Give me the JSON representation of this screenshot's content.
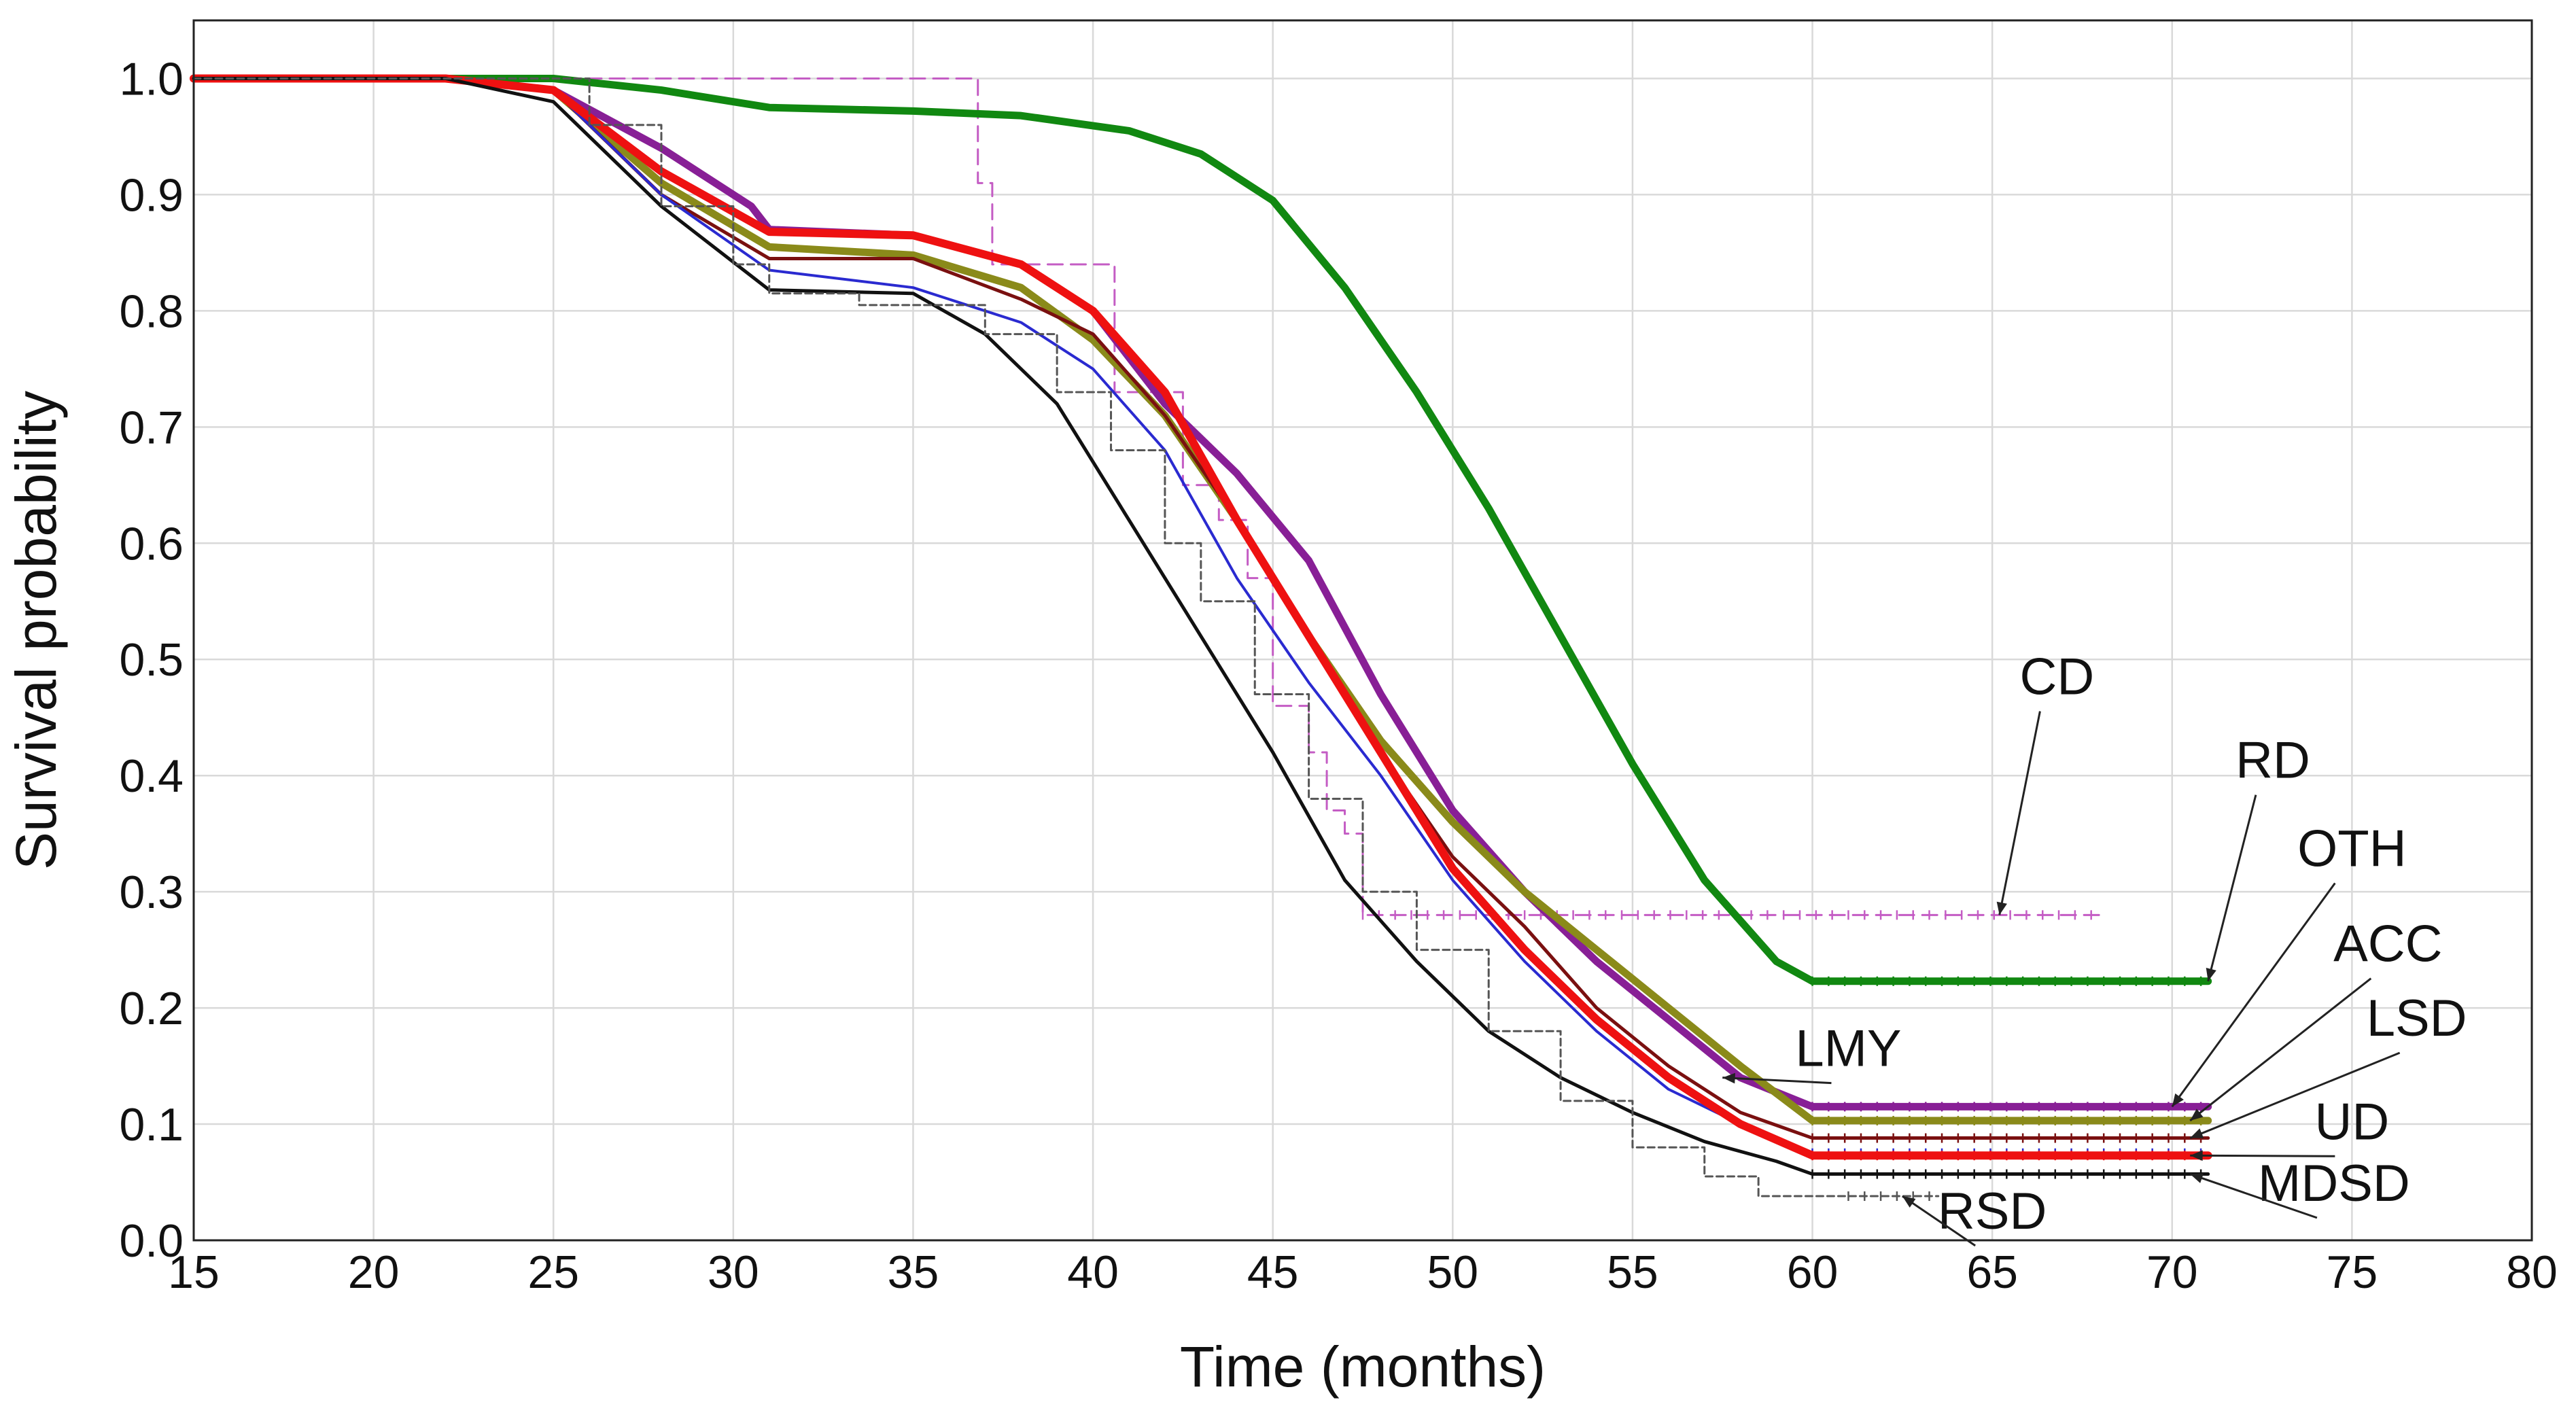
{
  "chart_data": {
    "type": "line",
    "title": "",
    "xlabel": "Time (months)",
    "ylabel": "Survival probability",
    "xlim": [
      15,
      80
    ],
    "ylim": [
      0.0,
      1.05
    ],
    "xticks": [
      15,
      20,
      25,
      30,
      35,
      40,
      45,
      50,
      55,
      60,
      65,
      70,
      75,
      80
    ],
    "yticks": [
      0.0,
      0.1,
      0.2,
      0.3,
      0.4,
      0.5,
      0.6,
      0.7,
      0.8,
      0.9,
      1.0
    ],
    "ytick_labels": [
      "0.0",
      "0.1",
      "0.2",
      "0.3",
      "0.4",
      "0.5",
      "0.6",
      "0.7",
      "0.8",
      "0.9",
      "1.0"
    ],
    "grid": true,
    "series": [
      {
        "name": "CD",
        "color": "#c45cc4",
        "dash": "22 12",
        "width": 3,
        "step": true,
        "x": [
          15,
          36.3,
          36.8,
          37.2,
          40.2,
          40.6,
          42.5,
          43.5,
          44.3,
          45.0,
          46.0,
          46.5,
          47.0,
          47.5,
          68.0
        ],
        "y": [
          1.0,
          1.0,
          0.91,
          0.84,
          0.84,
          0.73,
          0.65,
          0.62,
          0.57,
          0.46,
          0.42,
          0.37,
          0.35,
          0.28,
          0.28
        ]
      },
      {
        "name": "RD",
        "color": "#118811",
        "dash": "",
        "width": 11,
        "step": false,
        "x": [
          15,
          25,
          28,
          31,
          35,
          38,
          41,
          43,
          45,
          47,
          49,
          51,
          53,
          55,
          57,
          59,
          60,
          71
        ],
        "y": [
          1.0,
          1.0,
          0.99,
          0.975,
          0.972,
          0.968,
          0.955,
          0.935,
          0.895,
          0.82,
          0.73,
          0.63,
          0.52,
          0.41,
          0.31,
          0.24,
          0.223,
          0.223
        ]
      },
      {
        "name": "OTH",
        "color": "#881f96",
        "dash": "",
        "width": 11,
        "step": false,
        "x": [
          15,
          22,
          25,
          28,
          30.5,
          31,
          35,
          38,
          40,
          42,
          44,
          46,
          48,
          50,
          52,
          54,
          56,
          58,
          60,
          71
        ],
        "y": [
          1.0,
          1.0,
          0.99,
          0.94,
          0.89,
          0.87,
          0.865,
          0.84,
          0.8,
          0.72,
          0.66,
          0.585,
          0.47,
          0.37,
          0.3,
          0.24,
          0.19,
          0.14,
          0.115,
          0.115
        ]
      },
      {
        "name": "ACC",
        "color": "#8a8a1a",
        "dash": "",
        "width": 11,
        "step": false,
        "x": [
          15,
          22,
          25,
          28,
          31,
          35,
          38,
          40,
          42,
          44,
          46,
          48,
          50,
          52,
          54,
          56,
          58,
          60,
          71
        ],
        "y": [
          1.0,
          1.0,
          0.99,
          0.91,
          0.855,
          0.848,
          0.82,
          0.775,
          0.71,
          0.62,
          0.52,
          0.43,
          0.36,
          0.3,
          0.25,
          0.2,
          0.15,
          0.103,
          0.103
        ]
      },
      {
        "name": "LSD",
        "color": "#7a1010",
        "dash": "",
        "width": 5,
        "step": false,
        "x": [
          15,
          22,
          25,
          28,
          31,
          35,
          38,
          40,
          42,
          44,
          46,
          48,
          50,
          52,
          54,
          56,
          58,
          60,
          71
        ],
        "y": [
          1.0,
          1.0,
          0.99,
          0.9,
          0.845,
          0.845,
          0.81,
          0.78,
          0.71,
          0.62,
          0.52,
          0.42,
          0.33,
          0.27,
          0.2,
          0.15,
          0.11,
          0.088,
          0.088
        ]
      },
      {
        "name": "LMY",
        "color": "#2a2ad0",
        "dash": "",
        "width": 4,
        "step": false,
        "x": [
          15,
          22,
          25,
          28,
          31,
          35,
          38,
          40,
          42,
          44,
          46,
          48,
          50,
          52,
          54,
          56,
          58,
          60,
          71
        ],
        "y": [
          1.0,
          1.0,
          0.99,
          0.9,
          0.835,
          0.82,
          0.79,
          0.75,
          0.68,
          0.57,
          0.48,
          0.4,
          0.31,
          0.24,
          0.18,
          0.13,
          0.1,
          0.075,
          0.075
        ]
      },
      {
        "name": "UD",
        "color": "#ee1111",
        "dash": "",
        "width": 12,
        "step": false,
        "x": [
          15,
          22,
          25,
          28,
          31,
          35,
          38,
          40,
          42,
          44,
          46,
          48,
          50,
          52,
          54,
          56,
          58,
          60,
          71
        ],
        "y": [
          1.0,
          1.0,
          0.99,
          0.92,
          0.868,
          0.865,
          0.84,
          0.8,
          0.73,
          0.62,
          0.52,
          0.42,
          0.32,
          0.25,
          0.19,
          0.14,
          0.1,
          0.073,
          0.073
        ]
      },
      {
        "name": "MDSD",
        "color": "#111111",
        "dash": "",
        "width": 5,
        "step": false,
        "x": [
          15,
          22,
          25,
          28,
          31,
          35,
          37,
          39,
          41,
          43,
          45,
          47,
          49,
          51,
          53,
          55,
          57,
          59,
          60,
          71
        ],
        "y": [
          1.0,
          1.0,
          0.98,
          0.89,
          0.818,
          0.815,
          0.78,
          0.72,
          0.62,
          0.52,
          0.42,
          0.31,
          0.24,
          0.18,
          0.14,
          0.11,
          0.085,
          0.068,
          0.057,
          0.057
        ]
      },
      {
        "name": "RSD",
        "color": "#555555",
        "dash": "10 6",
        "width": 3,
        "step": true,
        "x": [
          15,
          24.5,
          26,
          28,
          30,
          31,
          33.5,
          37,
          39,
          40.5,
          42,
          43,
          44.5,
          46,
          47.5,
          49,
          51,
          53,
          55,
          57,
          58.5,
          61,
          63.5
        ],
        "y": [
          1.0,
          1.0,
          0.96,
          0.89,
          0.84,
          0.815,
          0.805,
          0.78,
          0.73,
          0.68,
          0.6,
          0.55,
          0.47,
          0.38,
          0.3,
          0.25,
          0.18,
          0.12,
          0.08,
          0.055,
          0.038,
          0.038,
          0.038
        ]
      }
    ],
    "annotations": [
      {
        "label": "CD",
        "series": "CD",
        "text_x": 66.8,
        "text_y": 0.47,
        "point_x": 65.2,
        "point_y": 0.28
      },
      {
        "label": "RD",
        "series": "RD",
        "text_x": 72.8,
        "text_y": 0.398,
        "point_x": 71.0,
        "point_y": 0.223
      },
      {
        "label": "OTH",
        "series": "OTH",
        "text_x": 75.0,
        "text_y": 0.322,
        "point_x": 70.0,
        "point_y": 0.115
      },
      {
        "label": "ACC",
        "series": "ACC",
        "text_x": 76.0,
        "text_y": 0.24,
        "point_x": 70.5,
        "point_y": 0.103
      },
      {
        "label": "LSD",
        "series": "LSD",
        "text_x": 76.8,
        "text_y": 0.176,
        "point_x": 70.5,
        "point_y": 0.088
      },
      {
        "label": "UD",
        "series": "UD",
        "text_x": 75.0,
        "text_y": 0.087,
        "point_x": 70.5,
        "point_y": 0.073
      },
      {
        "label": "MDSD",
        "series": "MDSD",
        "text_x": 74.5,
        "text_y": 0.034,
        "point_x": 70.5,
        "point_y": 0.057
      },
      {
        "label": "LMY",
        "series": "LMY",
        "text_x": 61.0,
        "text_y": 0.15,
        "point_x": 57.5,
        "point_y": 0.14
      },
      {
        "label": "RSD",
        "series": "RSD",
        "text_x": 65.0,
        "text_y": 0.01,
        "point_x": 62.5,
        "point_y": 0.038
      }
    ]
  }
}
